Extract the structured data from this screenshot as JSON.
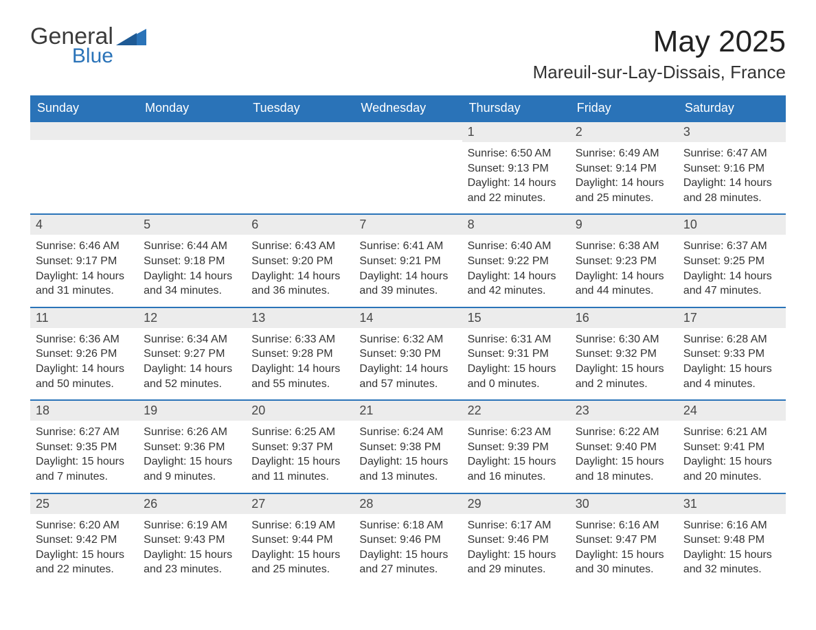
{
  "brand": {
    "name1": "General",
    "name2": "Blue",
    "accent_color": "#2a73b8",
    "text_color": "#3b3b3b"
  },
  "header": {
    "month_title": "May 2025",
    "location": "Mareuil-sur-Lay-Dissais, France"
  },
  "colors": {
    "header_bg": "#2a73b8",
    "header_text": "#ffffff",
    "daynum_bg": "#ececec",
    "daynum_border_top": "#2a73b8",
    "body_text": "#333333",
    "page_bg": "#ffffff"
  },
  "typography": {
    "weekday_fontsize": 18,
    "daynum_fontsize": 18,
    "body_fontsize": 16,
    "title_fontsize": 44,
    "subtitle_fontsize": 26
  },
  "layout": {
    "columns": 7,
    "rows": 5,
    "leading_blanks": 4
  },
  "weekdays": [
    "Sunday",
    "Monday",
    "Tuesday",
    "Wednesday",
    "Thursday",
    "Friday",
    "Saturday"
  ],
  "days": [
    {
      "n": "1",
      "sunrise": "Sunrise: 6:50 AM",
      "sunset": "Sunset: 9:13 PM",
      "dayl1": "Daylight: 14 hours",
      "dayl2": "and 22 minutes."
    },
    {
      "n": "2",
      "sunrise": "Sunrise: 6:49 AM",
      "sunset": "Sunset: 9:14 PM",
      "dayl1": "Daylight: 14 hours",
      "dayl2": "and 25 minutes."
    },
    {
      "n": "3",
      "sunrise": "Sunrise: 6:47 AM",
      "sunset": "Sunset: 9:16 PM",
      "dayl1": "Daylight: 14 hours",
      "dayl2": "and 28 minutes."
    },
    {
      "n": "4",
      "sunrise": "Sunrise: 6:46 AM",
      "sunset": "Sunset: 9:17 PM",
      "dayl1": "Daylight: 14 hours",
      "dayl2": "and 31 minutes."
    },
    {
      "n": "5",
      "sunrise": "Sunrise: 6:44 AM",
      "sunset": "Sunset: 9:18 PM",
      "dayl1": "Daylight: 14 hours",
      "dayl2": "and 34 minutes."
    },
    {
      "n": "6",
      "sunrise": "Sunrise: 6:43 AM",
      "sunset": "Sunset: 9:20 PM",
      "dayl1": "Daylight: 14 hours",
      "dayl2": "and 36 minutes."
    },
    {
      "n": "7",
      "sunrise": "Sunrise: 6:41 AM",
      "sunset": "Sunset: 9:21 PM",
      "dayl1": "Daylight: 14 hours",
      "dayl2": "and 39 minutes."
    },
    {
      "n": "8",
      "sunrise": "Sunrise: 6:40 AM",
      "sunset": "Sunset: 9:22 PM",
      "dayl1": "Daylight: 14 hours",
      "dayl2": "and 42 minutes."
    },
    {
      "n": "9",
      "sunrise": "Sunrise: 6:38 AM",
      "sunset": "Sunset: 9:23 PM",
      "dayl1": "Daylight: 14 hours",
      "dayl2": "and 44 minutes."
    },
    {
      "n": "10",
      "sunrise": "Sunrise: 6:37 AM",
      "sunset": "Sunset: 9:25 PM",
      "dayl1": "Daylight: 14 hours",
      "dayl2": "and 47 minutes."
    },
    {
      "n": "11",
      "sunrise": "Sunrise: 6:36 AM",
      "sunset": "Sunset: 9:26 PM",
      "dayl1": "Daylight: 14 hours",
      "dayl2": "and 50 minutes."
    },
    {
      "n": "12",
      "sunrise": "Sunrise: 6:34 AM",
      "sunset": "Sunset: 9:27 PM",
      "dayl1": "Daylight: 14 hours",
      "dayl2": "and 52 minutes."
    },
    {
      "n": "13",
      "sunrise": "Sunrise: 6:33 AM",
      "sunset": "Sunset: 9:28 PM",
      "dayl1": "Daylight: 14 hours",
      "dayl2": "and 55 minutes."
    },
    {
      "n": "14",
      "sunrise": "Sunrise: 6:32 AM",
      "sunset": "Sunset: 9:30 PM",
      "dayl1": "Daylight: 14 hours",
      "dayl2": "and 57 minutes."
    },
    {
      "n": "15",
      "sunrise": "Sunrise: 6:31 AM",
      "sunset": "Sunset: 9:31 PM",
      "dayl1": "Daylight: 15 hours",
      "dayl2": "and 0 minutes."
    },
    {
      "n": "16",
      "sunrise": "Sunrise: 6:30 AM",
      "sunset": "Sunset: 9:32 PM",
      "dayl1": "Daylight: 15 hours",
      "dayl2": "and 2 minutes."
    },
    {
      "n": "17",
      "sunrise": "Sunrise: 6:28 AM",
      "sunset": "Sunset: 9:33 PM",
      "dayl1": "Daylight: 15 hours",
      "dayl2": "and 4 minutes."
    },
    {
      "n": "18",
      "sunrise": "Sunrise: 6:27 AM",
      "sunset": "Sunset: 9:35 PM",
      "dayl1": "Daylight: 15 hours",
      "dayl2": "and 7 minutes."
    },
    {
      "n": "19",
      "sunrise": "Sunrise: 6:26 AM",
      "sunset": "Sunset: 9:36 PM",
      "dayl1": "Daylight: 15 hours",
      "dayl2": "and 9 minutes."
    },
    {
      "n": "20",
      "sunrise": "Sunrise: 6:25 AM",
      "sunset": "Sunset: 9:37 PM",
      "dayl1": "Daylight: 15 hours",
      "dayl2": "and 11 minutes."
    },
    {
      "n": "21",
      "sunrise": "Sunrise: 6:24 AM",
      "sunset": "Sunset: 9:38 PM",
      "dayl1": "Daylight: 15 hours",
      "dayl2": "and 13 minutes."
    },
    {
      "n": "22",
      "sunrise": "Sunrise: 6:23 AM",
      "sunset": "Sunset: 9:39 PM",
      "dayl1": "Daylight: 15 hours",
      "dayl2": "and 16 minutes."
    },
    {
      "n": "23",
      "sunrise": "Sunrise: 6:22 AM",
      "sunset": "Sunset: 9:40 PM",
      "dayl1": "Daylight: 15 hours",
      "dayl2": "and 18 minutes."
    },
    {
      "n": "24",
      "sunrise": "Sunrise: 6:21 AM",
      "sunset": "Sunset: 9:41 PM",
      "dayl1": "Daylight: 15 hours",
      "dayl2": "and 20 minutes."
    },
    {
      "n": "25",
      "sunrise": "Sunrise: 6:20 AM",
      "sunset": "Sunset: 9:42 PM",
      "dayl1": "Daylight: 15 hours",
      "dayl2": "and 22 minutes."
    },
    {
      "n": "26",
      "sunrise": "Sunrise: 6:19 AM",
      "sunset": "Sunset: 9:43 PM",
      "dayl1": "Daylight: 15 hours",
      "dayl2": "and 23 minutes."
    },
    {
      "n": "27",
      "sunrise": "Sunrise: 6:19 AM",
      "sunset": "Sunset: 9:44 PM",
      "dayl1": "Daylight: 15 hours",
      "dayl2": "and 25 minutes."
    },
    {
      "n": "28",
      "sunrise": "Sunrise: 6:18 AM",
      "sunset": "Sunset: 9:46 PM",
      "dayl1": "Daylight: 15 hours",
      "dayl2": "and 27 minutes."
    },
    {
      "n": "29",
      "sunrise": "Sunrise: 6:17 AM",
      "sunset": "Sunset: 9:46 PM",
      "dayl1": "Daylight: 15 hours",
      "dayl2": "and 29 minutes."
    },
    {
      "n": "30",
      "sunrise": "Sunrise: 6:16 AM",
      "sunset": "Sunset: 9:47 PM",
      "dayl1": "Daylight: 15 hours",
      "dayl2": "and 30 minutes."
    },
    {
      "n": "31",
      "sunrise": "Sunrise: 6:16 AM",
      "sunset": "Sunset: 9:48 PM",
      "dayl1": "Daylight: 15 hours",
      "dayl2": "and 32 minutes."
    }
  ]
}
